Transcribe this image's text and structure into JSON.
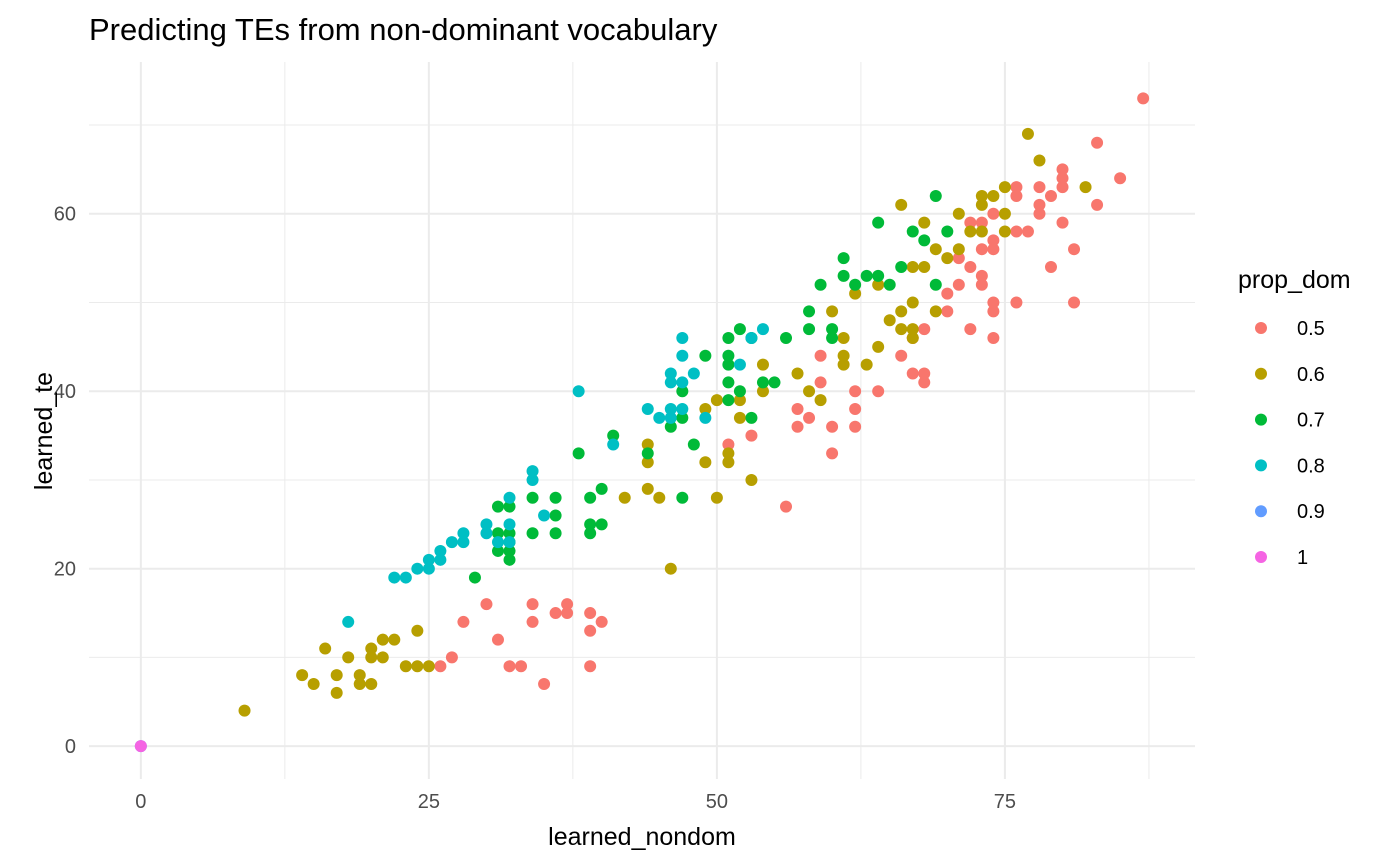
{
  "chart_data": {
    "type": "scatter",
    "title": "Predicting TEs from non-dominant vocabulary",
    "xlabel": "learned_nondom",
    "ylabel": "learned_te",
    "xlim": [
      -4.5,
      91.5
    ],
    "ylim": [
      -3.7,
      77.1
    ],
    "x_ticks": [
      0,
      25,
      50,
      75
    ],
    "y_ticks": [
      0,
      20,
      40,
      60
    ],
    "x_minor": [
      12.5,
      37.5,
      62.5,
      87.5
    ],
    "y_minor": [
      10,
      30,
      50,
      70
    ],
    "grid": true,
    "legend": {
      "title": "prop_dom",
      "position": "right"
    },
    "series": [
      {
        "name": "0.5",
        "color": "#F8766D",
        "points": [
          [
            26,
            9
          ],
          [
            27,
            10
          ],
          [
            28,
            14
          ],
          [
            30,
            16
          ],
          [
            31,
            12
          ],
          [
            32,
            9
          ],
          [
            33,
            9
          ],
          [
            34,
            14
          ],
          [
            34,
            16
          ],
          [
            35,
            7
          ],
          [
            36,
            15
          ],
          [
            37,
            15
          ],
          [
            37,
            16
          ],
          [
            39,
            15
          ],
          [
            39,
            13
          ],
          [
            39,
            9
          ],
          [
            40,
            14
          ],
          [
            51,
            34
          ],
          [
            53,
            35
          ],
          [
            56,
            27
          ],
          [
            57,
            36
          ],
          [
            57,
            38
          ],
          [
            58,
            37
          ],
          [
            59,
            41
          ],
          [
            59,
            44
          ],
          [
            60,
            33
          ],
          [
            60,
            36
          ],
          [
            62,
            36
          ],
          [
            62,
            38
          ],
          [
            62,
            40
          ],
          [
            64,
            40
          ],
          [
            66,
            44
          ],
          [
            67,
            42
          ],
          [
            67,
            46
          ],
          [
            68,
            41
          ],
          [
            68,
            42
          ],
          [
            68,
            47
          ],
          [
            70,
            49
          ],
          [
            70,
            51
          ],
          [
            71,
            52
          ],
          [
            71,
            55
          ],
          [
            72,
            47
          ],
          [
            72,
            54
          ],
          [
            72,
            59
          ],
          [
            73,
            53
          ],
          [
            73,
            52
          ],
          [
            73,
            56
          ],
          [
            73,
            59
          ],
          [
            74,
            46
          ],
          [
            74,
            49
          ],
          [
            74,
            50
          ],
          [
            74,
            57
          ],
          [
            74,
            56
          ],
          [
            74,
            60
          ],
          [
            76,
            50
          ],
          [
            76,
            58
          ],
          [
            76,
            62
          ],
          [
            76,
            63
          ],
          [
            77,
            58
          ],
          [
            78,
            60
          ],
          [
            78,
            61
          ],
          [
            78,
            63
          ],
          [
            79,
            54
          ],
          [
            79,
            62
          ],
          [
            80,
            59
          ],
          [
            80,
            63
          ],
          [
            80,
            64
          ],
          [
            80,
            65
          ],
          [
            81,
            50
          ],
          [
            81,
            56
          ],
          [
            83,
            61
          ],
          [
            83,
            68
          ],
          [
            85,
            64
          ],
          [
            87,
            73
          ]
        ]
      },
      {
        "name": "0.6",
        "color": "#B79F00",
        "points": [
          [
            9,
            4
          ],
          [
            14,
            8
          ],
          [
            15,
            7
          ],
          [
            16,
            11
          ],
          [
            17,
            6
          ],
          [
            17,
            8
          ],
          [
            18,
            10
          ],
          [
            19,
            7
          ],
          [
            19,
            8
          ],
          [
            20,
            7
          ],
          [
            20,
            10
          ],
          [
            20,
            11
          ],
          [
            21,
            10
          ],
          [
            21,
            12
          ],
          [
            22,
            12
          ],
          [
            23,
            9
          ],
          [
            24,
            9
          ],
          [
            24,
            13
          ],
          [
            25,
            9
          ],
          [
            42,
            28
          ],
          [
            44,
            29
          ],
          [
            44,
            32
          ],
          [
            44,
            34
          ],
          [
            45,
            28
          ],
          [
            46,
            20
          ],
          [
            49,
            32
          ],
          [
            49,
            38
          ],
          [
            50,
            28
          ],
          [
            50,
            39
          ],
          [
            51,
            32
          ],
          [
            51,
            33
          ],
          [
            52,
            37
          ],
          [
            52,
            39
          ],
          [
            53,
            30
          ],
          [
            54,
            40
          ],
          [
            54,
            43
          ],
          [
            57,
            42
          ],
          [
            58,
            40
          ],
          [
            59,
            39
          ],
          [
            60,
            49
          ],
          [
            61,
            44
          ],
          [
            61,
            43
          ],
          [
            61,
            46
          ],
          [
            62,
            51
          ],
          [
            63,
            43
          ],
          [
            64,
            52
          ],
          [
            64,
            45
          ],
          [
            65,
            48
          ],
          [
            66,
            49
          ],
          [
            66,
            47
          ],
          [
            66,
            61
          ],
          [
            67,
            46
          ],
          [
            67,
            47
          ],
          [
            67,
            50
          ],
          [
            67,
            54
          ],
          [
            68,
            54
          ],
          [
            68,
            59
          ],
          [
            69,
            49
          ],
          [
            69,
            56
          ],
          [
            70,
            55
          ],
          [
            71,
            56
          ],
          [
            71,
            60
          ],
          [
            72,
            58
          ],
          [
            73,
            58
          ],
          [
            73,
            61
          ],
          [
            73,
            62
          ],
          [
            74,
            62
          ],
          [
            75,
            58
          ],
          [
            75,
            60
          ],
          [
            75,
            63
          ],
          [
            77,
            69
          ],
          [
            78,
            66
          ],
          [
            82,
            63
          ]
        ]
      },
      {
        "name": "0.7",
        "color": "#00BA38",
        "points": [
          [
            29,
            19
          ],
          [
            31,
            22
          ],
          [
            31,
            24
          ],
          [
            31,
            27
          ],
          [
            32,
            21
          ],
          [
            32,
            22
          ],
          [
            32,
            23
          ],
          [
            32,
            24
          ],
          [
            32,
            27
          ],
          [
            34,
            24
          ],
          [
            34,
            28
          ],
          [
            36,
            24
          ],
          [
            36,
            26
          ],
          [
            36,
            28
          ],
          [
            38,
            33
          ],
          [
            39,
            24
          ],
          [
            39,
            25
          ],
          [
            39,
            28
          ],
          [
            40,
            25
          ],
          [
            40,
            29
          ],
          [
            41,
            35
          ],
          [
            44,
            33
          ],
          [
            46,
            36
          ],
          [
            47,
            28
          ],
          [
            47,
            37
          ],
          [
            47,
            40
          ],
          [
            48,
            34
          ],
          [
            49,
            44
          ],
          [
            51,
            39
          ],
          [
            51,
            41
          ],
          [
            51,
            43
          ],
          [
            51,
            44
          ],
          [
            51,
            46
          ],
          [
            52,
            40
          ],
          [
            52,
            47
          ],
          [
            53,
            37
          ],
          [
            53,
            46
          ],
          [
            54,
            41
          ],
          [
            55,
            41
          ],
          [
            56,
            46
          ],
          [
            58,
            47
          ],
          [
            58,
            49
          ],
          [
            59,
            52
          ],
          [
            60,
            46
          ],
          [
            60,
            47
          ],
          [
            61,
            53
          ],
          [
            61,
            55
          ],
          [
            62,
            52
          ],
          [
            63,
            53
          ],
          [
            64,
            53
          ],
          [
            64,
            59
          ],
          [
            65,
            52
          ],
          [
            66,
            54
          ],
          [
            67,
            58
          ],
          [
            68,
            57
          ],
          [
            69,
            52
          ],
          [
            69,
            62
          ],
          [
            70,
            58
          ]
        ]
      },
      {
        "name": "0.8",
        "color": "#00BFC4",
        "points": [
          [
            18,
            14
          ],
          [
            22,
            19
          ],
          [
            23,
            19
          ],
          [
            24,
            20
          ],
          [
            25,
            20
          ],
          [
            25,
            21
          ],
          [
            26,
            21
          ],
          [
            26,
            22
          ],
          [
            27,
            23
          ],
          [
            28,
            23
          ],
          [
            28,
            24
          ],
          [
            30,
            24
          ],
          [
            30,
            25
          ],
          [
            31,
            23
          ],
          [
            32,
            23
          ],
          [
            32,
            25
          ],
          [
            32,
            28
          ],
          [
            34,
            30
          ],
          [
            34,
            31
          ],
          [
            35,
            26
          ],
          [
            38,
            40
          ],
          [
            41,
            34
          ],
          [
            44,
            38
          ],
          [
            45,
            37
          ],
          [
            46,
            37
          ],
          [
            46,
            38
          ],
          [
            46,
            41
          ],
          [
            46,
            42
          ],
          [
            47,
            38
          ],
          [
            47,
            41
          ],
          [
            47,
            44
          ],
          [
            47,
            46
          ],
          [
            48,
            42
          ],
          [
            49,
            37
          ],
          [
            52,
            43
          ],
          [
            53,
            46
          ],
          [
            54,
            47
          ]
        ]
      },
      {
        "name": "0.9",
        "color": "#619CFF",
        "points": [
          [
            0,
            0
          ]
        ]
      },
      {
        "name": "1",
        "color": "#F564E3",
        "points": [
          [
            0,
            0
          ]
        ]
      }
    ]
  }
}
